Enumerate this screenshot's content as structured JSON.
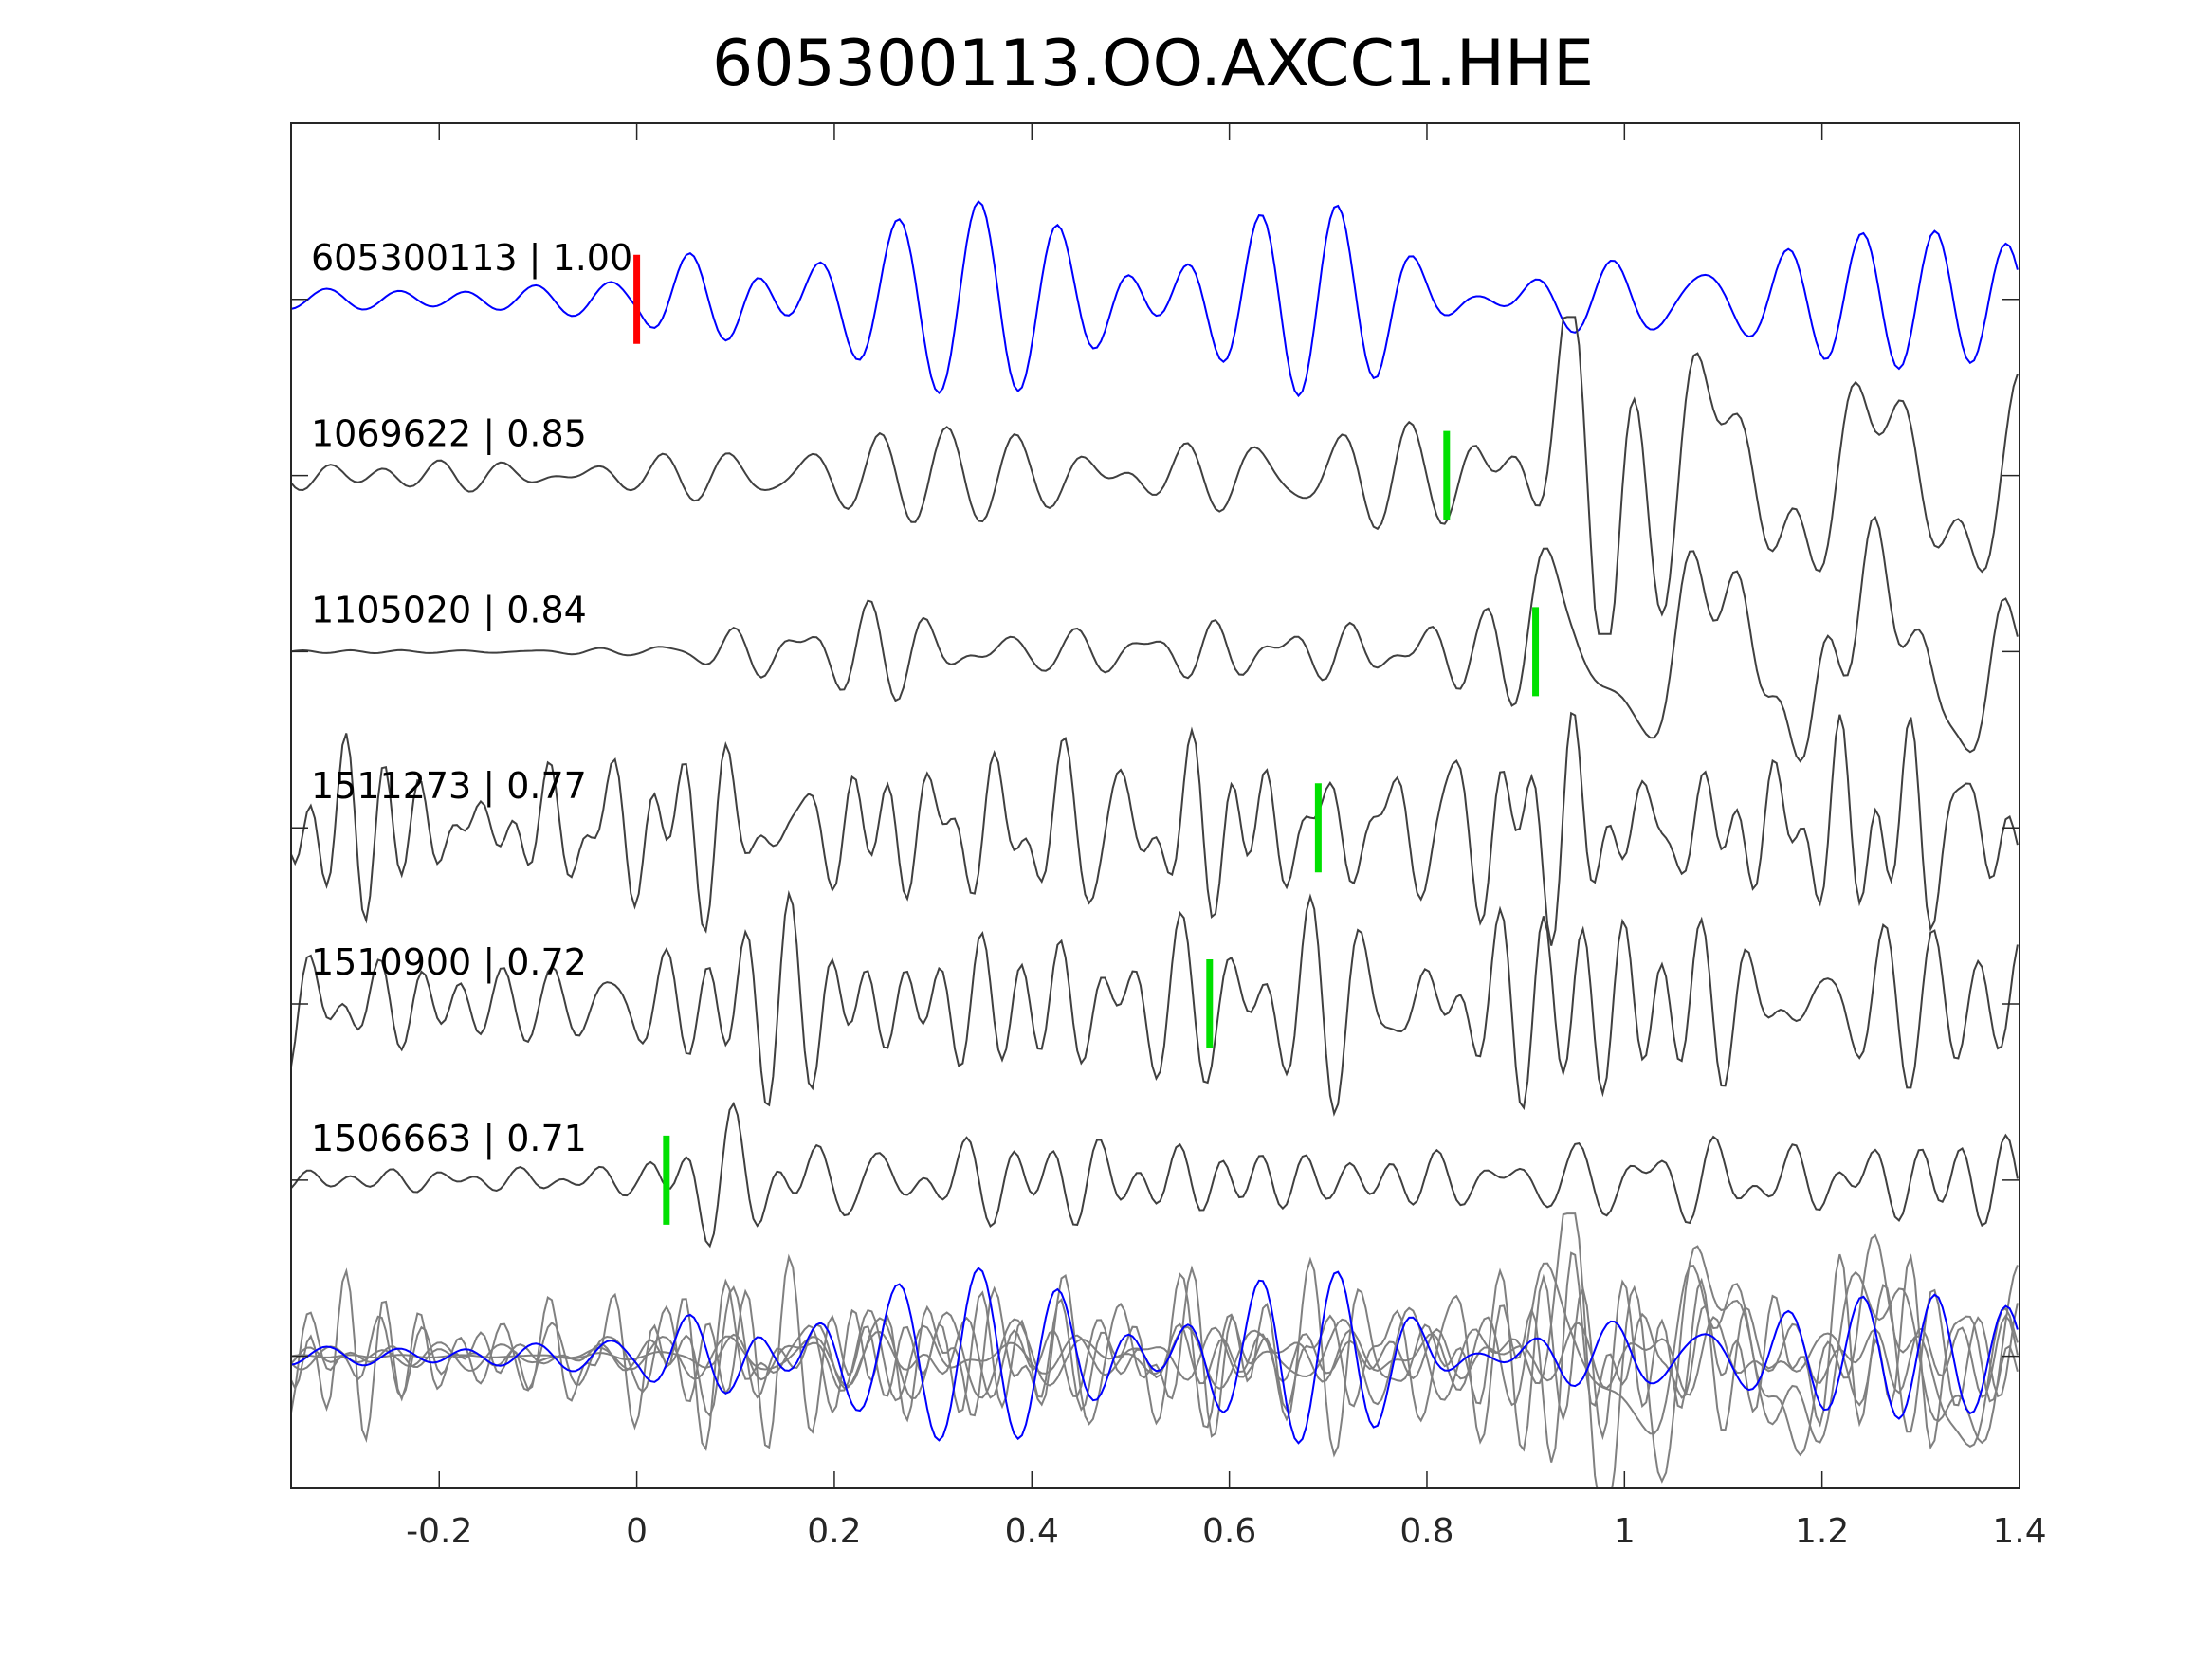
{
  "chart_data": {
    "type": "line",
    "title": "605300113.OO.AXCC1.HHE",
    "xlabel": "",
    "ylabel": "",
    "xlim": [
      -0.35,
      1.4
    ],
    "ylim": [
      -6.75,
      1.0
    ],
    "xticks": [
      -0.2,
      0,
      0.2,
      0.4,
      0.6,
      0.8,
      1,
      1.2,
      1.4
    ],
    "xtick_labels": [
      "-0.2",
      "0",
      "0.2",
      "0.4",
      "0.6",
      "0.8",
      "1",
      "1.2",
      "1.4"
    ],
    "grid": false,
    "legend": "none",
    "sample_interval": 0.004,
    "colors": {
      "reference": "#0000ff",
      "trace": "#404040",
      "overlay": "#808080",
      "reference_pick": "#ff0000",
      "pick": "#00e000",
      "axes": "#262626"
    },
    "traces": [
      {
        "id": "605300113",
        "correlation": "1.00",
        "label": "605300113 | 1.00",
        "offset": 0,
        "reference": true,
        "pick": 0.0,
        "pick_color": "reference_pick",
        "seed": 11,
        "freq": [
          10,
          18
        ],
        "envelope": [
          [
            -0.35,
            0.05
          ],
          [
            0.0,
            0.08
          ],
          [
            0.06,
            0.35
          ],
          [
            0.12,
            0.6
          ],
          [
            0.2,
            0.55
          ],
          [
            0.5,
            0.4
          ],
          [
            0.75,
            0.45
          ],
          [
            0.85,
            0.2
          ],
          [
            1.0,
            0.55
          ],
          [
            1.4,
            0.35
          ]
        ]
      },
      {
        "id": "1069622",
        "correlation": "0.85",
        "label": "1069622 | 0.85",
        "offset": -1,
        "reference": false,
        "pick": 0.82,
        "pick_color": "pick",
        "seed": 23,
        "freq": [
          12,
          24
        ],
        "envelope": [
          [
            -0.35,
            0.05
          ],
          [
            0.0,
            0.07
          ],
          [
            0.15,
            0.2
          ],
          [
            0.5,
            0.25
          ],
          [
            0.8,
            0.2
          ],
          [
            0.95,
            0.55
          ],
          [
            1.0,
            0.6
          ],
          [
            1.4,
            0.3
          ]
        ],
        "low_freq": {
          "freq": 6,
          "start": 0.85,
          "amp": 0.45
        }
      },
      {
        "id": "1105020",
        "correlation": "0.84",
        "label": "1105020 | 0.84",
        "offset": -2,
        "reference": false,
        "pick": 0.91,
        "pick_color": "pick",
        "seed": 37,
        "freq": [
          12,
          24
        ],
        "envelope": [
          [
            -0.35,
            0.01
          ],
          [
            0.0,
            0.02
          ],
          [
            0.15,
            0.18
          ],
          [
            0.55,
            0.2
          ],
          [
            0.85,
            0.15
          ],
          [
            0.95,
            0.5
          ],
          [
            1.0,
            0.6
          ],
          [
            1.4,
            0.3
          ]
        ],
        "low_freq": {
          "freq": 6,
          "start": 0.85,
          "amp": 0.45
        }
      },
      {
        "id": "1511273",
        "correlation": "0.77",
        "label": "1511273 | 0.77",
        "offset": -3,
        "reference": false,
        "pick": 0.69,
        "pick_color": "pick",
        "seed": 53,
        "freq": [
          14,
          30
        ],
        "envelope": [
          [
            -0.35,
            0.35
          ],
          [
            1.4,
            0.38
          ]
        ]
      },
      {
        "id": "1510900",
        "correlation": "0.72",
        "label": "1510900 | 0.72",
        "offset": -4,
        "reference": false,
        "pick": 0.58,
        "pick_color": "pick",
        "seed": 71,
        "freq": [
          14,
          30
        ],
        "envelope": [
          [
            -0.35,
            0.35
          ],
          [
            1.4,
            0.4
          ]
        ]
      },
      {
        "id": "1506663",
        "correlation": "0.71",
        "label": "1506663 | 0.71",
        "offset": -5,
        "reference": false,
        "pick": 0.03,
        "pick_color": "pick",
        "seed": 89,
        "freq": [
          12,
          24
        ],
        "envelope": [
          [
            -0.35,
            0.05
          ],
          [
            0.0,
            0.07
          ],
          [
            0.08,
            0.4
          ],
          [
            0.6,
            0.35
          ],
          [
            0.7,
            0.15
          ],
          [
            1.0,
            0.3
          ],
          [
            1.4,
            0.25
          ]
        ]
      }
    ],
    "overlay": {
      "name": "stack",
      "offset": -6,
      "scale": 0.9
    }
  }
}
